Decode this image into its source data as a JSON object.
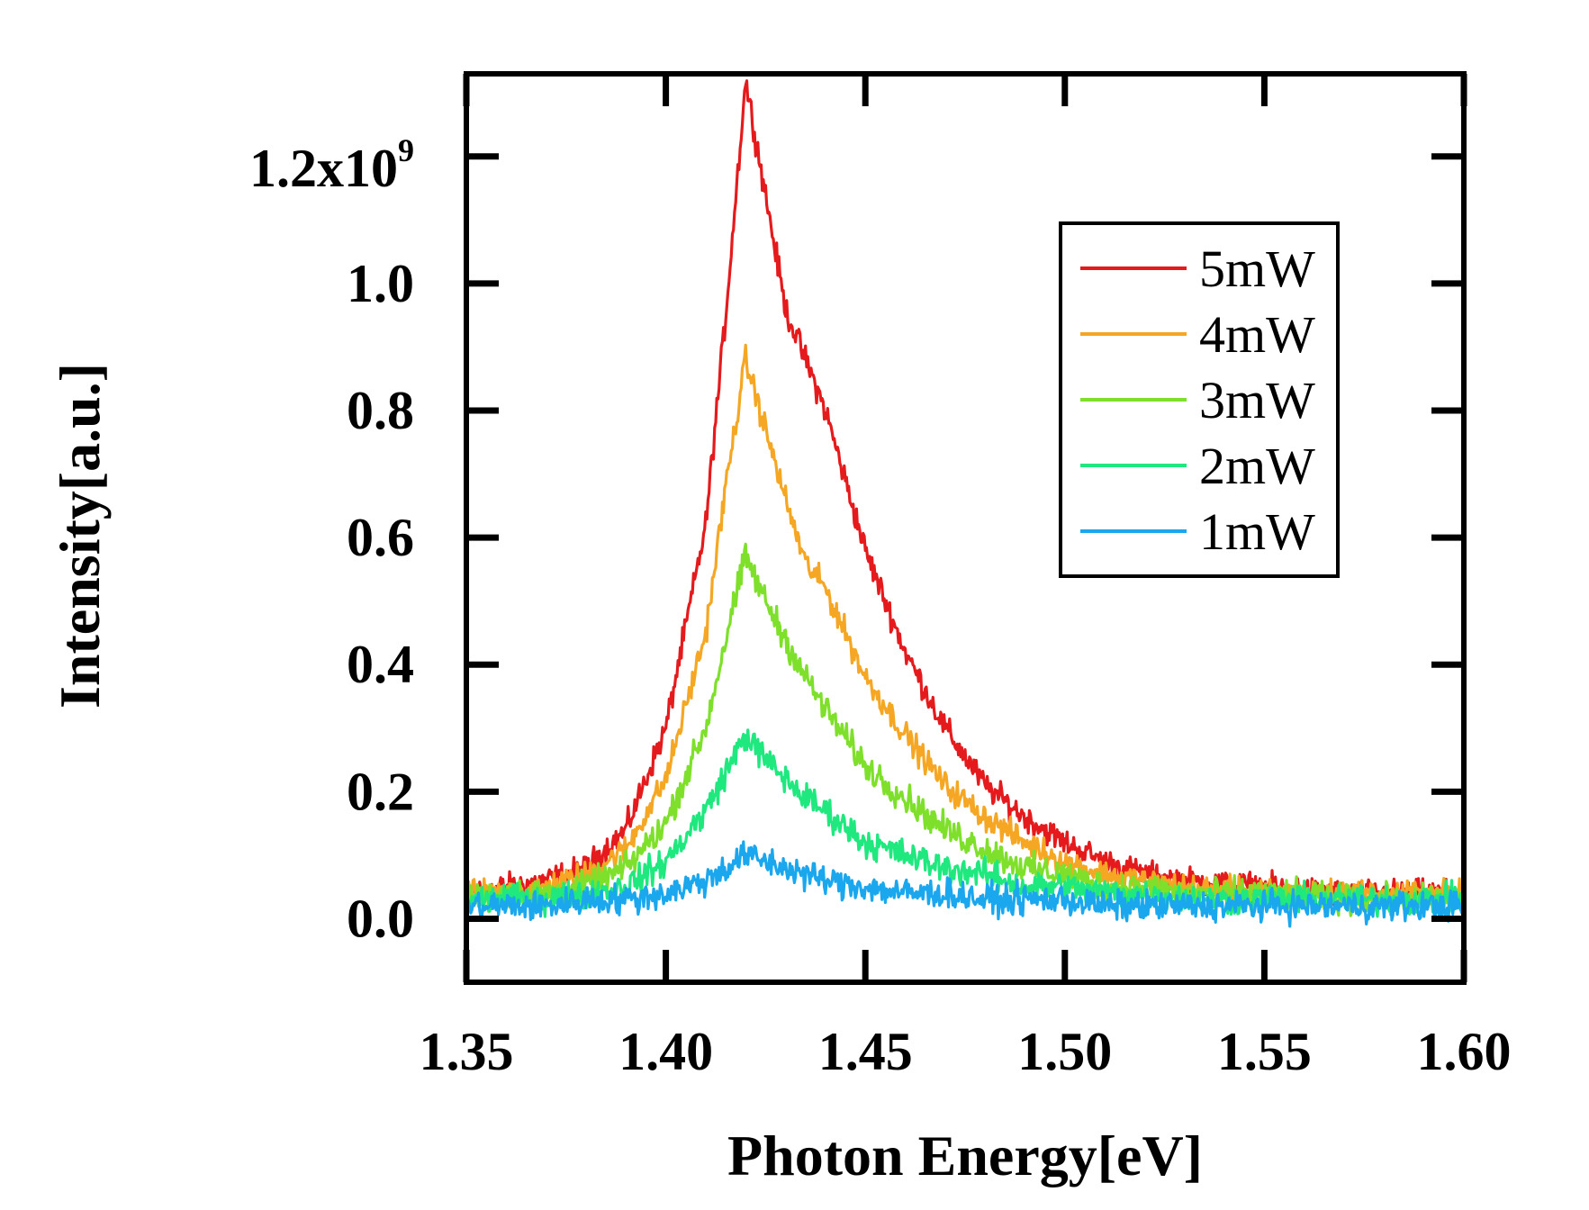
{
  "chart_data": {
    "type": "line",
    "title": "",
    "xlabel": "Photon Energy[eV]",
    "ylabel": "Intensity[a.u.]",
    "xlim": [
      1.35,
      1.6
    ],
    "ylim": [
      -100000000.0,
      1330000000.0
    ],
    "x_ticks": [
      "1.35",
      "1.40",
      "1.45",
      "1.50",
      "1.55",
      "1.60"
    ],
    "y_ticks": [
      "0.0",
      "0.2",
      "0.4",
      "0.6",
      "0.8",
      "1.0"
    ],
    "y_top_tick_mantissa": "1.2x10",
    "y_top_tick_exponent": "9",
    "grid": false,
    "legend_position": "top-right",
    "x": [
      1.35,
      1.36,
      1.37,
      1.38,
      1.39,
      1.4,
      1.41,
      1.415,
      1.42,
      1.425,
      1.43,
      1.435,
      1.44,
      1.45,
      1.46,
      1.47,
      1.48,
      1.49,
      1.5,
      1.51,
      1.52,
      1.53,
      1.55,
      1.57,
      1.6
    ],
    "series": [
      {
        "name": "5mW",
        "color": "#e41a1c",
        "values": [
          40000000.0,
          50000000.0,
          60000000.0,
          80000000.0,
          140000000.0,
          300000000.0,
          620000000.0,
          950000000.0,
          1320000000.0,
          1140000000.0,
          960000000.0,
          880000000.0,
          800000000.0,
          580000000.0,
          420000000.0,
          300000000.0,
          210000000.0,
          160000000.0,
          120000000.0,
          90000000.0,
          70000000.0,
          60000000.0,
          50000000.0,
          40000000.0,
          40000000.0
        ]
      },
      {
        "name": "4mW",
        "color": "#f5a623",
        "values": [
          40000000.0,
          40000000.0,
          50000000.0,
          70000000.0,
          110000000.0,
          220000000.0,
          450000000.0,
          680000000.0,
          880000000.0,
          770000000.0,
          660000000.0,
          560000000.0,
          520000000.0,
          380000000.0,
          290000000.0,
          210000000.0,
          160000000.0,
          120000000.0,
          90000000.0,
          70000000.0,
          60000000.0,
          50000000.0,
          40000000.0,
          40000000.0,
          40000000.0
        ]
      },
      {
        "name": "3mW",
        "color": "#7ee02a",
        "values": [
          30000000.0,
          40000000.0,
          40000000.0,
          50000000.0,
          80000000.0,
          150000000.0,
          300000000.0,
          440000000.0,
          570000000.0,
          500000000.0,
          440000000.0,
          380000000.0,
          330000000.0,
          240000000.0,
          190000000.0,
          140000000.0,
          110000000.0,
          80000000.0,
          70000000.0,
          50000000.0,
          50000000.0,
          40000000.0,
          40000000.0,
          30000000.0,
          30000000.0
        ]
      },
      {
        "name": "2mW",
        "color": "#1ee87e",
        "values": [
          30000000.0,
          30000000.0,
          30000000.0,
          40000000.0,
          50000000.0,
          90000000.0,
          170000000.0,
          230000000.0,
          290000000.0,
          250000000.0,
          220000000.0,
          190000000.0,
          170000000.0,
          120000000.0,
          100000000.0,
          80000000.0,
          70000000.0,
          50000000.0,
          50000000.0,
          40000000.0,
          40000000.0,
          30000000.0,
          30000000.0,
          30000000.0,
          30000000.0
        ]
      },
      {
        "name": "1mW",
        "color": "#1aa7ee",
        "values": [
          20000000.0,
          20000000.0,
          20000000.0,
          30000000.0,
          30000000.0,
          40000000.0,
          60000000.0,
          80000000.0,
          100000000.0,
          90000000.0,
          80000000.0,
          70000000.0,
          60000000.0,
          50000000.0,
          40000000.0,
          40000000.0,
          30000000.0,
          30000000.0,
          30000000.0,
          20000000.0,
          20000000.0,
          20000000.0,
          20000000.0,
          20000000.0,
          20000000.0
        ]
      }
    ],
    "noise_amplitude": [
      18000000.0,
      18000000.0,
      20000000.0,
      20000000.0,
      20000000.0
    ]
  }
}
